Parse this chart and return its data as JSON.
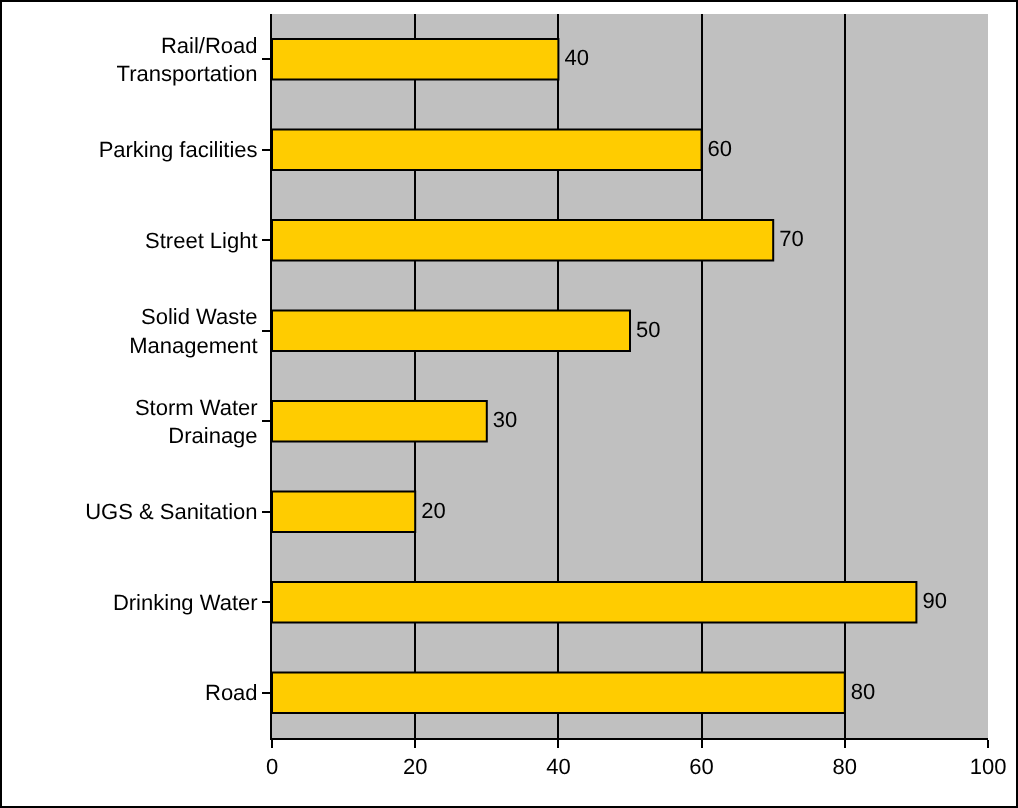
{
  "chart_data": {
    "type": "bar",
    "orientation": "horizontal",
    "categories": [
      "Rail/Road Transportation",
      "Parking facilities",
      "Street Light",
      "Solid Waste Management",
      "Storm Water Drainage",
      "UGS & Sanitation",
      "Drinking Water",
      "Road"
    ],
    "values": [
      40,
      60,
      70,
      50,
      30,
      20,
      90,
      80
    ],
    "color": "#ffcc00",
    "xlim": [
      0,
      100
    ],
    "xticks": [
      0,
      20,
      40,
      60,
      80,
      100
    ],
    "grid": "x",
    "data_labels": true
  }
}
